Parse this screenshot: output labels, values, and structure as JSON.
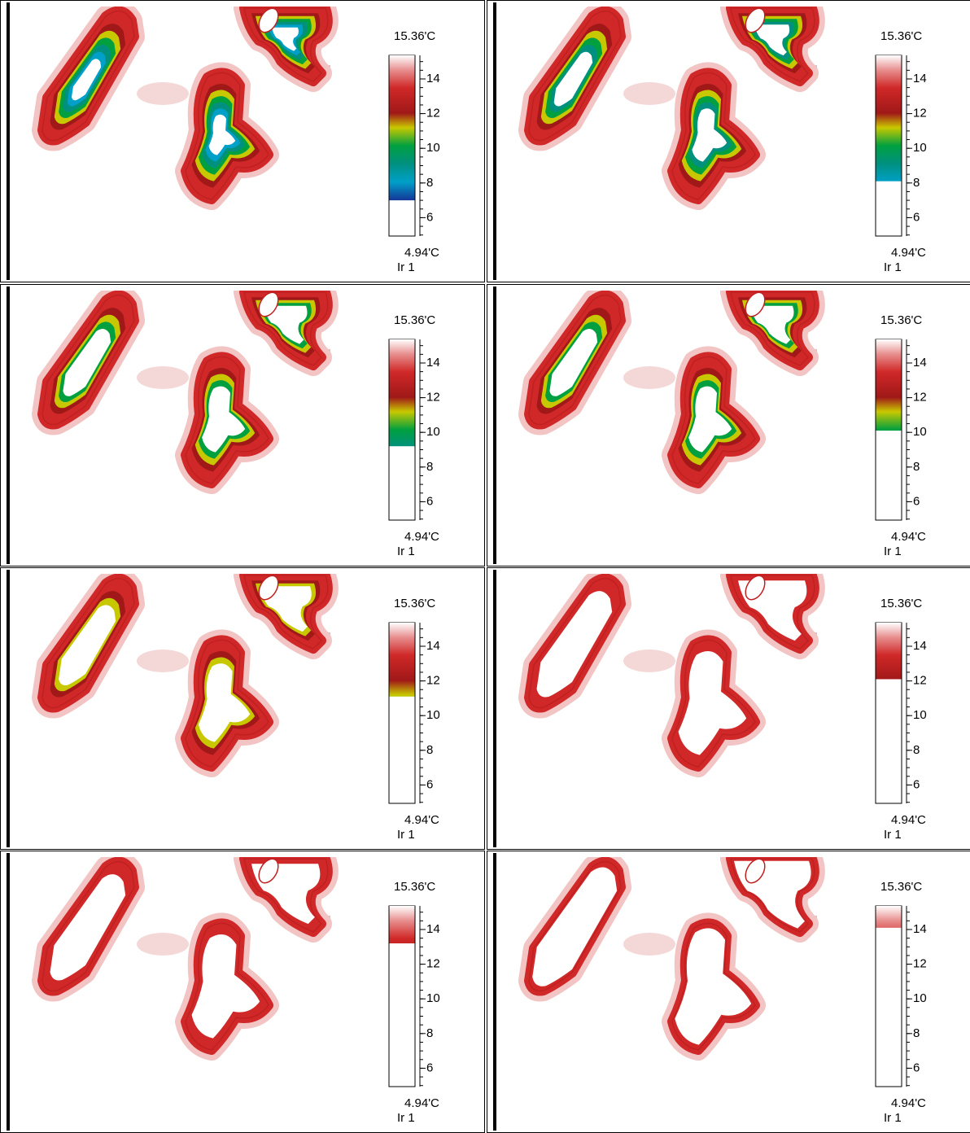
{
  "panels": [
    {
      "scale_max": {
        "value": 15.36,
        "label": "15.36'C"
      },
      "scale_min": {
        "value": 4.94,
        "label": "4.94'C"
      },
      "channel": "Ir 1",
      "threshold": 7.0,
      "ticks": [
        14,
        12,
        10,
        8,
        6
      ]
    },
    {
      "scale_max": {
        "value": 15.36,
        "label": "15.36'C"
      },
      "scale_min": {
        "value": 4.94,
        "label": "4.94'C"
      },
      "channel": "Ir 1",
      "threshold": 8.1,
      "ticks": [
        14,
        12,
        10,
        8,
        6
      ]
    },
    {
      "scale_max": {
        "value": 15.36,
        "label": "15.36'C"
      },
      "scale_min": {
        "value": 4.94,
        "label": "4.94'C"
      },
      "channel": "Ir 1",
      "threshold": 9.2,
      "ticks": [
        14,
        12,
        10,
        8,
        6
      ]
    },
    {
      "scale_max": {
        "value": 15.36,
        "label": "15.36'C"
      },
      "scale_min": {
        "value": 4.94,
        "label": "4.94'C"
      },
      "channel": "Ir 1",
      "threshold": 10.1,
      "ticks": [
        14,
        12,
        10,
        8,
        6
      ]
    },
    {
      "scale_max": {
        "value": 15.36,
        "label": "15.36'C"
      },
      "scale_min": {
        "value": 4.94,
        "label": "4.94'C"
      },
      "channel": "Ir 1",
      "threshold": 11.1,
      "ticks": [
        14,
        12,
        10,
        8,
        6
      ]
    },
    {
      "scale_max": {
        "value": 15.36,
        "label": "15.36'C"
      },
      "scale_min": {
        "value": 4.94,
        "label": "4.94'C"
      },
      "channel": "Ir 1",
      "threshold": 12.1,
      "ticks": [
        14,
        12,
        10,
        8,
        6
      ]
    },
    {
      "scale_max": {
        "value": 15.36,
        "label": "15.36'C"
      },
      "scale_min": {
        "value": 4.94,
        "label": "4.94'C"
      },
      "channel": "Ir 1",
      "threshold": 13.2,
      "ticks": [
        14,
        12,
        10,
        8,
        6
      ]
    },
    {
      "scale_max": {
        "value": 15.36,
        "label": "15.36'C"
      },
      "scale_min": {
        "value": 4.94,
        "label": "4.94'C"
      },
      "channel": "Ir 1",
      "threshold": 14.1,
      "ticks": [
        14,
        12,
        10,
        8,
        6
      ]
    }
  ]
}
